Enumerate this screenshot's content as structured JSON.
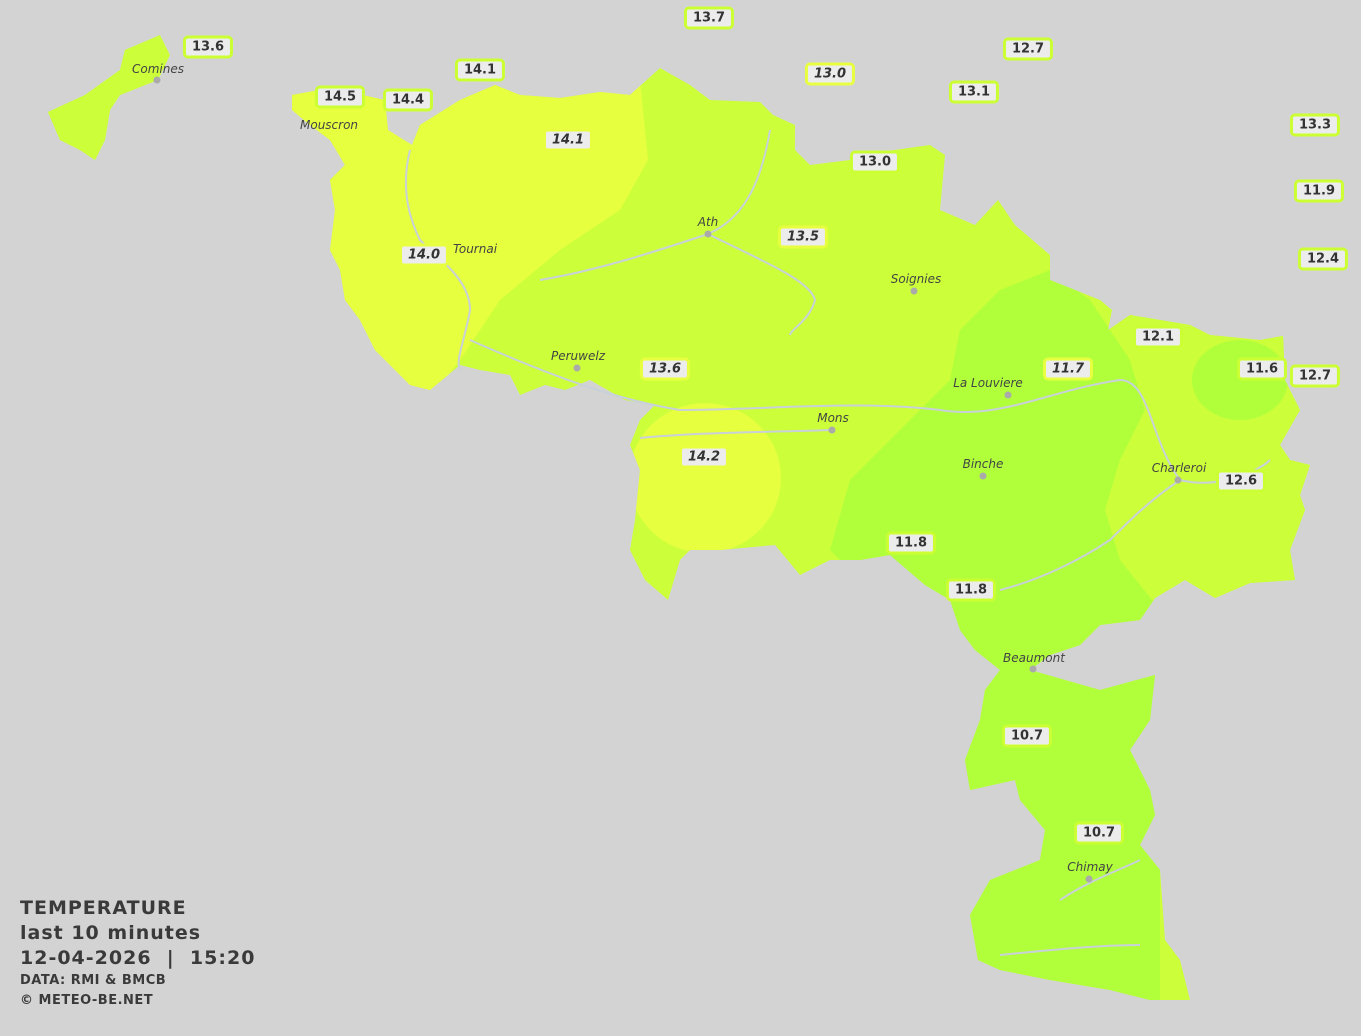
{
  "legend": {
    "title": "TEMPERATURE",
    "period": "last 10 minutes",
    "datetime": "12-04-2026  |  15:20",
    "source": "DATA: RMI & BMCB",
    "copyright": "© METEO-BE.NET"
  },
  "colors": {
    "background": "#d3d3d3",
    "warm_zone": "#e6ff3f",
    "mid_zone": "#ccff3a",
    "cool_zone": "#b0ff3a",
    "label_border": "#ccff33"
  },
  "units": "°C",
  "cities": [
    "Comines",
    "Mouscron",
    "Tournai",
    "Ath",
    "Soignies",
    "Peruwelz",
    "Mons",
    "La Louviere",
    "Binche",
    "Charleroi",
    "Beaumont",
    "Chimay"
  ],
  "stations": [
    {
      "value": "13.7",
      "italic": false
    },
    {
      "value": "13.6",
      "italic": false
    },
    {
      "value": "12.7",
      "italic": false
    },
    {
      "value": "14.1",
      "italic": false
    },
    {
      "value": "13.0",
      "italic": true
    },
    {
      "value": "13.1",
      "italic": false
    },
    {
      "value": "14.5",
      "italic": false
    },
    {
      "value": "14.4",
      "italic": false
    },
    {
      "value": "13.3",
      "italic": false
    },
    {
      "value": "14.1",
      "italic": true
    },
    {
      "value": "13.0",
      "italic": false
    },
    {
      "value": "11.9",
      "italic": false
    },
    {
      "value": "13.5",
      "italic": true
    },
    {
      "value": "14.0",
      "italic": true
    },
    {
      "value": "12.4",
      "italic": false
    },
    {
      "value": "12.1",
      "italic": false
    },
    {
      "value": "11.6",
      "italic": false
    },
    {
      "value": "13.6",
      "italic": true
    },
    {
      "value": "11.7",
      "italic": true
    },
    {
      "value": "12.7",
      "italic": false
    },
    {
      "value": "14.2",
      "italic": true
    },
    {
      "value": "12.6",
      "italic": false
    },
    {
      "value": "11.8",
      "italic": false
    },
    {
      "value": "11.8",
      "italic": false
    },
    {
      "value": "10.7",
      "italic": false
    },
    {
      "value": "10.7",
      "italic": false
    }
  ]
}
